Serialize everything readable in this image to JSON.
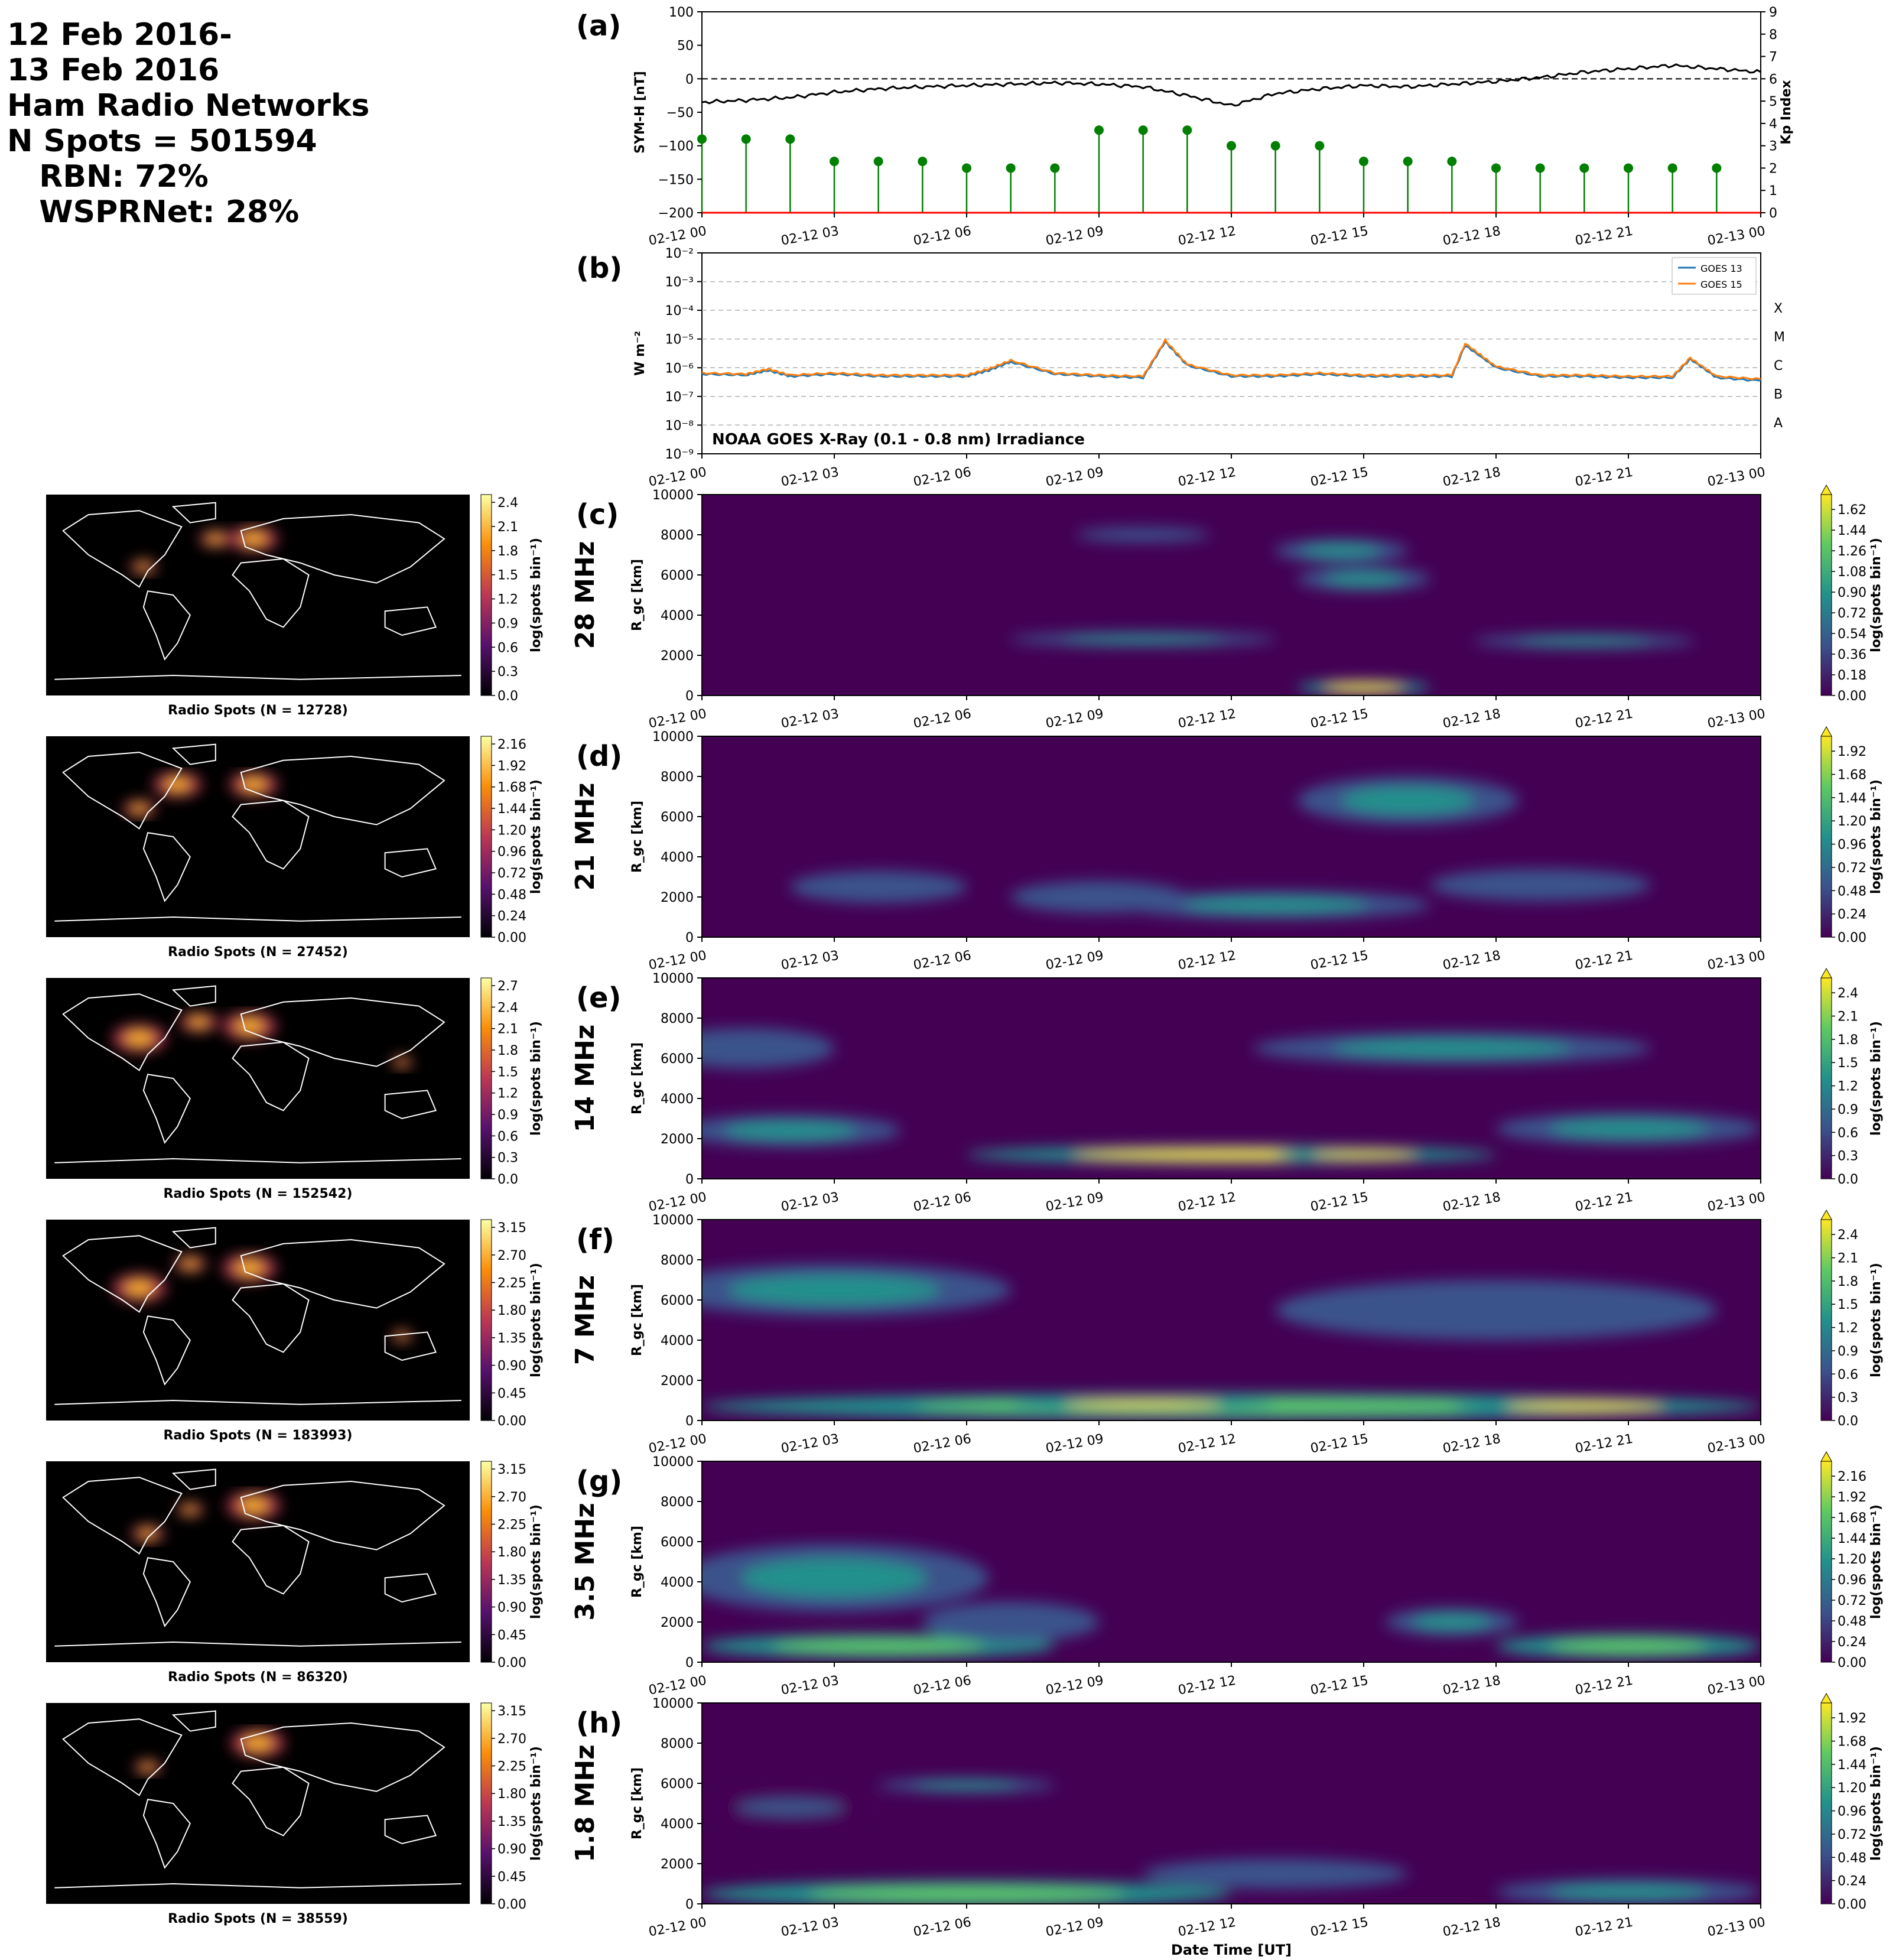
{
  "header": {
    "lines": [
      "12 Feb 2016-",
      "13 Feb 2016",
      "Ham Radio Networks",
      "N Spots = 501594",
      "   RBN: 72%",
      "   WSPRNet: 28%"
    ]
  },
  "time_ticks": [
    "02-12 00",
    "02-12 03",
    "02-12 06",
    "02-12 09",
    "02-12 12",
    "02-12 15",
    "02-12 18",
    "02-12 21",
    "02-13 00"
  ],
  "xlabel": "Date Time [UT]",
  "colors": {
    "symh": "#000000",
    "kp": "#008000",
    "goes13": "#1f77b4",
    "goes15": "#ff7f0e",
    "kp_low": "#008000",
    "kp_mid": "#ff8c00",
    "kp_high": "#ff0000"
  },
  "panels": {
    "a": {
      "label": "(a)",
      "ylabel_left": "SYM-H [nT]",
      "ylabel_right": "Kp Index",
      "yticks_left": [
        "100",
        "50",
        "0",
        "−50",
        "−100",
        "−150",
        "−200"
      ],
      "yticks_right": [
        "0",
        "1",
        "2",
        "3",
        "4",
        "5",
        "6",
        "7",
        "8",
        "9"
      ]
    },
    "b": {
      "label": "(b)",
      "ylabel": "W m⁻²",
      "yticks": [
        "10⁻²",
        "10⁻³",
        "10⁻⁴",
        "10⁻⁵",
        "10⁻⁶",
        "10⁻⁷",
        "10⁻⁸",
        "10⁻⁹"
      ],
      "classes": [
        "X",
        "M",
        "C",
        "B",
        "A"
      ],
      "legend": [
        "GOES 13",
        "GOES 15"
      ],
      "annotation": "NOAA GOES X-Ray (0.1 - 0.8 nm) Irradiance"
    }
  },
  "bands": [
    {
      "label": "(c)",
      "band": "28 MHz",
      "map_caption": "Radio Spots (N = 12728)",
      "map_cbar_ticks": [
        "0.0",
        "0.3",
        "0.6",
        "0.9",
        "1.2",
        "1.5",
        "1.8",
        "2.1",
        "2.4"
      ],
      "rtp_cbar_ticks": [
        "0.00",
        "0.18",
        "0.36",
        "0.54",
        "0.72",
        "0.90",
        "1.08",
        "1.26",
        "1.44",
        "1.62"
      ]
    },
    {
      "label": "(d)",
      "band": "21 MHz",
      "map_caption": "Radio Spots (N = 27452)",
      "map_cbar_ticks": [
        "0.00",
        "0.24",
        "0.48",
        "0.72",
        "0.96",
        "1.20",
        "1.44",
        "1.68",
        "1.92",
        "2.16"
      ],
      "rtp_cbar_ticks": [
        "0.00",
        "0.24",
        "0.48",
        "0.72",
        "0.96",
        "1.20",
        "1.44",
        "1.68",
        "1.92"
      ]
    },
    {
      "label": "(e)",
      "band": "14 MHz",
      "map_caption": "Radio Spots (N = 152542)",
      "map_cbar_ticks": [
        "0.0",
        "0.3",
        "0.6",
        "0.9",
        "1.2",
        "1.5",
        "1.8",
        "2.1",
        "2.4",
        "2.7"
      ],
      "rtp_cbar_ticks": [
        "0.0",
        "0.3",
        "0.6",
        "0.9",
        "1.2",
        "1.5",
        "1.8",
        "2.1",
        "2.4"
      ]
    },
    {
      "label": "(f)",
      "band": "7 MHz",
      "map_caption": "Radio Spots (N = 183993)",
      "map_cbar_ticks": [
        "0.00",
        "0.45",
        "0.90",
        "1.35",
        "1.80",
        "2.25",
        "2.70",
        "3.15"
      ],
      "rtp_cbar_ticks": [
        "0.0",
        "0.3",
        "0.6",
        "0.9",
        "1.2",
        "1.5",
        "1.8",
        "2.1",
        "2.4"
      ]
    },
    {
      "label": "(g)",
      "band": "3.5 MHz",
      "map_caption": "Radio Spots (N = 86320)",
      "map_cbar_ticks": [
        "0.00",
        "0.45",
        "0.90",
        "1.35",
        "1.80",
        "2.25",
        "2.70",
        "3.15"
      ],
      "rtp_cbar_ticks": [
        "0.00",
        "0.24",
        "0.48",
        "0.72",
        "0.96",
        "1.20",
        "1.44",
        "1.68",
        "1.92",
        "2.16"
      ]
    },
    {
      "label": "(h)",
      "band": "1.8 MHz",
      "map_caption": "Radio Spots (N = 38559)",
      "map_cbar_ticks": [
        "0.00",
        "0.45",
        "0.90",
        "1.35",
        "1.80",
        "2.25",
        "2.70",
        "3.15"
      ],
      "rtp_cbar_ticks": [
        "0.00",
        "0.24",
        "0.48",
        "0.72",
        "0.96",
        "1.20",
        "1.44",
        "1.68",
        "1.92"
      ]
    }
  ],
  "rtp_ylabel": "R_gc [km]",
  "rtp_yticks": [
    "0",
    "2000",
    "4000",
    "6000",
    "8000",
    "10000"
  ],
  "map_cbar_label": "log(spots bin⁻¹)",
  "rtp_cbar_label": "log(spots bin⁻¹)",
  "chart_data": [
    {
      "type": "line",
      "panel": "a",
      "series": [
        {
          "name": "SYM-H",
          "x_hours": [
            0,
            1,
            2,
            3,
            4,
            5,
            6,
            7,
            8,
            9,
            10,
            11,
            12,
            13,
            14,
            15,
            16,
            17,
            18,
            19,
            20,
            21,
            22,
            23,
            24
          ],
          "values": [
            -35,
            -32,
            -28,
            -20,
            -15,
            -12,
            -10,
            -8,
            -6,
            -8,
            -12,
            -25,
            -40,
            -22,
            -15,
            -10,
            -12,
            -8,
            -4,
            2,
            10,
            15,
            20,
            15,
            10
          ]
        }
      ],
      "ylim": [
        -200,
        100
      ]
    },
    {
      "type": "bar",
      "panel": "a",
      "series": [
        {
          "name": "Kp",
          "x_hours": [
            0,
            1,
            2,
            3,
            4,
            5,
            6,
            7,
            8,
            9,
            10,
            11,
            12,
            13,
            14,
            15,
            16,
            17,
            18,
            19,
            20,
            21,
            22,
            23
          ],
          "values": [
            3.3,
            3.3,
            3.3,
            2.3,
            2.3,
            2.3,
            2.0,
            2.0,
            2.0,
            3.7,
            3.7,
            3.7,
            3.0,
            3.0,
            3.0,
            2.3,
            2.3,
            2.3,
            2.0,
            2.0,
            2.0,
            2.0,
            2.0,
            2.0
          ]
        }
      ],
      "ylim": [
        0,
        9
      ]
    },
    {
      "type": "line",
      "panel": "b",
      "series": [
        {
          "name": "GOES 13",
          "x_hours": [
            0,
            1,
            1.5,
            2,
            3,
            4,
            5,
            6,
            6.5,
            7,
            8,
            9,
            10,
            10.5,
            11,
            12,
            13,
            14,
            15,
            16,
            17,
            17.3,
            18,
            19,
            20,
            21,
            22,
            22.4,
            23,
            24
          ],
          "values": [
            6e-07,
            5.5e-07,
            8e-07,
            5e-07,
            6e-07,
            5e-07,
            5e-07,
            5e-07,
            8e-07,
            1.6e-06,
            6e-07,
            5e-07,
            4.5e-07,
            8e-06,
            1.2e-06,
            5e-07,
            5e-07,
            6e-07,
            5e-07,
            5e-07,
            5e-07,
            6e-06,
            1e-06,
            5e-07,
            5e-07,
            4.5e-07,
            4.5e-07,
            2e-06,
            4.5e-07,
            3.5e-07
          ]
        },
        {
          "name": "GOES 15",
          "x_hours": [
            0,
            1,
            1.5,
            2,
            3,
            4,
            5,
            6,
            6.5,
            7,
            8,
            9,
            10,
            10.5,
            11,
            12,
            13,
            14,
            15,
            16,
            17,
            17.3,
            18,
            19,
            20,
            21,
            22,
            22.4,
            23,
            24
          ],
          "values": [
            6.5e-07,
            6e-07,
            9e-07,
            5.5e-07,
            6.5e-07,
            5.5e-07,
            5.5e-07,
            5.5e-07,
            9e-07,
            1.8e-06,
            6.5e-07,
            5.5e-07,
            5e-07,
            9e-06,
            1.3e-06,
            5.5e-07,
            5.5e-07,
            6.5e-07,
            5.5e-07,
            5.5e-07,
            5.5e-07,
            7e-06,
            1.1e-06,
            5.5e-07,
            5.5e-07,
            5e-07,
            5e-07,
            2.2e-06,
            5e-07,
            4e-07
          ]
        }
      ],
      "yscale": "log",
      "ylim": [
        1e-09,
        0.01
      ]
    },
    {
      "type": "heatmap",
      "panels": [
        "c",
        "d",
        "e",
        "f",
        "g",
        "h"
      ],
      "x": "Date Time [UT]",
      "y": "R_gc [km]",
      "xlim_hours": [
        0,
        24
      ],
      "ylim": [
        0,
        10000
      ]
    }
  ]
}
